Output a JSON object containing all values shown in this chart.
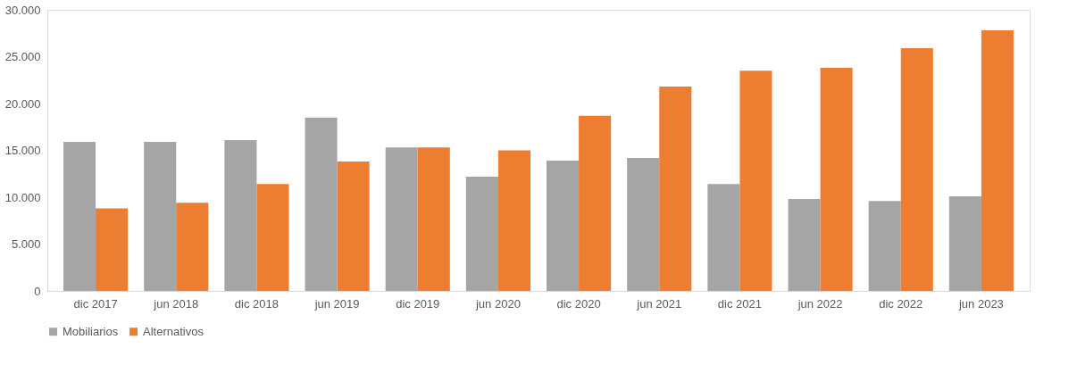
{
  "chart_data": {
    "type": "bar",
    "categories": [
      "dic 2017",
      "jun 2018",
      "dic 2018",
      "jun 2019",
      "dic 2019",
      "jun 2020",
      "dic 2020",
      "jun 2021",
      "dic 2021",
      "jun 2022",
      "dic 2022",
      "jun 2023"
    ],
    "series": [
      {
        "name": "Mobiliarios",
        "color": "#a5a5a5",
        "values": [
          15900,
          15900,
          16100,
          18500,
          15300,
          12200,
          13900,
          14200,
          11400,
          9800,
          9600,
          10100
        ]
      },
      {
        "name": "Alternativos",
        "color": "#ed7d31",
        "values": [
          8800,
          9400,
          11400,
          13800,
          15300,
          15000,
          18700,
          21800,
          23500,
          23800,
          25900,
          27800
        ]
      }
    ],
    "ylim": [
      0,
      30000
    ],
    "yticks": [
      {
        "value": 0,
        "label": "0"
      },
      {
        "value": 5000,
        "label": "5.000"
      },
      {
        "value": 10000,
        "label": "10.000"
      },
      {
        "value": 15000,
        "label": "15.000"
      },
      {
        "value": 20000,
        "label": "20.000"
      },
      {
        "value": 25000,
        "label": "25.000"
      },
      {
        "value": 30000,
        "label": "30.000"
      }
    ],
    "grid": false,
    "legend": "bottom"
  }
}
